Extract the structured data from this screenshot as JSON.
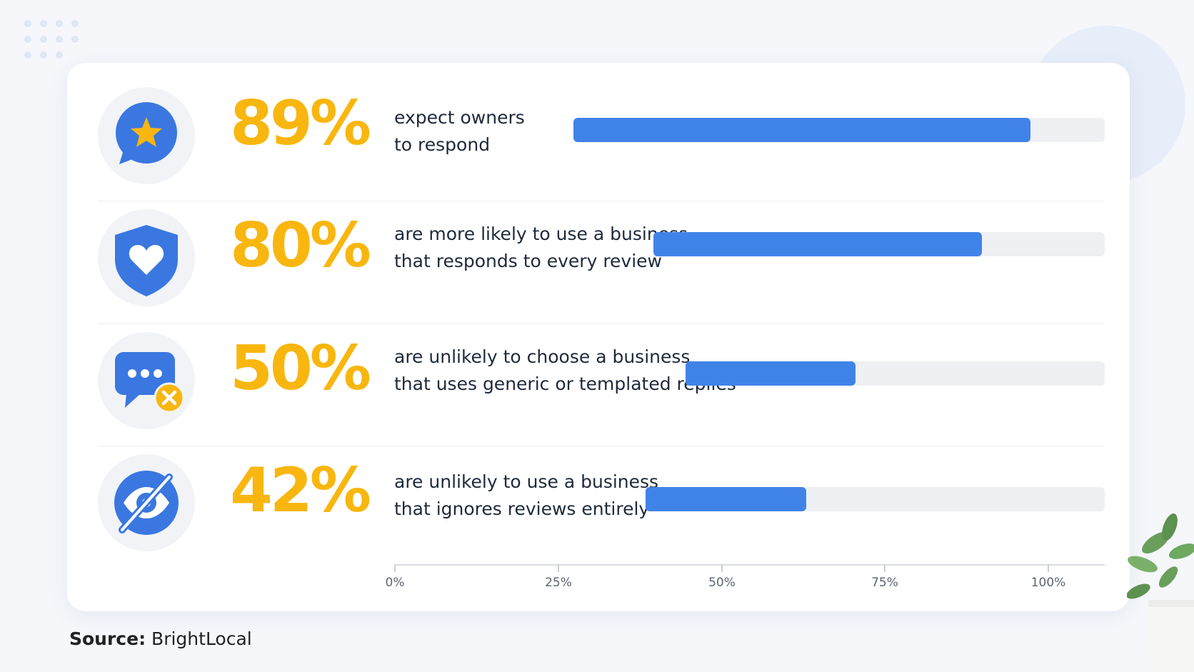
{
  "colors": {
    "accent_yellow": "#f8b60f",
    "bar_blue": "#4083e8",
    "bar_track": "#eef0f3",
    "icon_blue": "#3a77e0"
  },
  "chart_data": {
    "type": "bar",
    "orientation": "horizontal",
    "categories": [
      "expect owners to respond",
      "are more likely to use a business that responds to every review",
      "are unlikely to choose a business that uses generic or templated replies",
      "are unlikely to use a business that ignores reviews entirely"
    ],
    "values": [
      89,
      80,
      50,
      42
    ],
    "xlim": [
      0,
      100
    ],
    "x_ticks": [
      "0%",
      "25%",
      "50%",
      "75%",
      "100%"
    ],
    "grid": false
  },
  "rows": [
    {
      "percent": "89%",
      "line1": "expect owners",
      "line2": "to respond",
      "icon": "star-speech-bubble-icon"
    },
    {
      "percent": "80%",
      "line1": "are more likely to use a business",
      "line2": "that responds to every review",
      "icon": "heart-shield-icon"
    },
    {
      "percent": "50%",
      "line1": "are unlikely to choose a business",
      "line2": "that uses generic or templated replies",
      "icon": "chat-dots-x-icon"
    },
    {
      "percent": "42%",
      "line1": "are unlikely to use a business",
      "line2": "that ignores reviews entirely",
      "icon": "eye-slash-icon"
    }
  ],
  "source": {
    "label": "Source:",
    "value": "BrightLocal"
  }
}
